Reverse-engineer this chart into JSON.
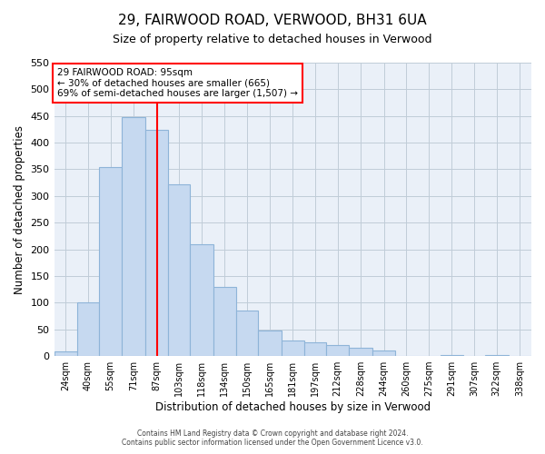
{
  "title": "29, FAIRWOOD ROAD, VERWOOD, BH31 6UA",
  "subtitle": "Size of property relative to detached houses in Verwood",
  "xlabel": "Distribution of detached houses by size in Verwood",
  "ylabel": "Number of detached properties",
  "bin_labels": [
    "24sqm",
    "40sqm",
    "55sqm",
    "71sqm",
    "87sqm",
    "103sqm",
    "118sqm",
    "134sqm",
    "150sqm",
    "165sqm",
    "181sqm",
    "197sqm",
    "212sqm",
    "228sqm",
    "244sqm",
    "260sqm",
    "275sqm",
    "291sqm",
    "307sqm",
    "322sqm",
    "338sqm"
  ],
  "bar_heights": [
    8,
    101,
    355,
    448,
    424,
    322,
    209,
    129,
    85,
    48,
    29,
    25,
    20,
    15,
    10,
    0,
    0,
    2,
    0,
    2,
    0
  ],
  "bar_color": "#c6d9f0",
  "bar_edge_color": "#8eb4d8",
  "vline_x_label_idx": 4,
  "vline_color": "red",
  "annotation_title": "29 FAIRWOOD ROAD: 95sqm",
  "annotation_line1": "← 30% of detached houses are smaller (665)",
  "annotation_line2": "69% of semi-detached houses are larger (1,507) →",
  "annotation_box_color": "white",
  "annotation_box_edge": "red",
  "ylim": [
    0,
    550
  ],
  "yticks": [
    0,
    50,
    100,
    150,
    200,
    250,
    300,
    350,
    400,
    450,
    500,
    550
  ],
  "footer1": "Contains HM Land Registry data © Crown copyright and database right 2024.",
  "footer2": "Contains public sector information licensed under the Open Government Licence v3.0.",
  "bin_edges": [
    24,
    40,
    55,
    71,
    87,
    103,
    118,
    134,
    150,
    165,
    181,
    197,
    212,
    228,
    244,
    260,
    275,
    291,
    307,
    322,
    338,
    354
  ],
  "plot_bg_color": "#eaf0f8",
  "fig_bg_color": "#ffffff"
}
